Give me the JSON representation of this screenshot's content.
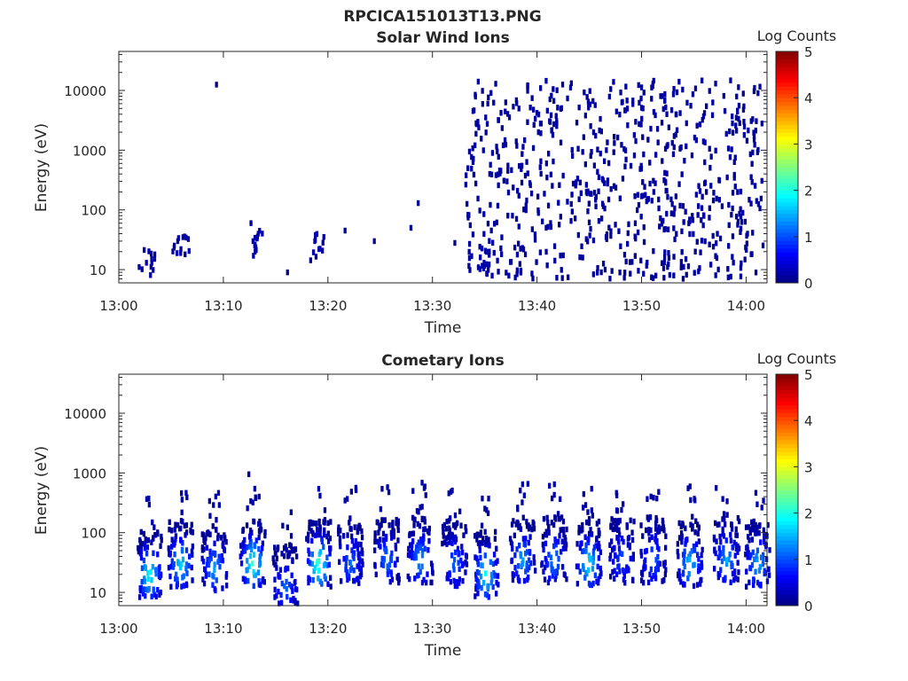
{
  "figure_title": "RPCICA151013T13.PNG",
  "chart_data": [
    {
      "type": "heatmap",
      "title": "Solar Wind Ions",
      "xlabel": "Time",
      "ylabel": "Energy (eV)",
      "x_ticks": [
        "13:00",
        "13:10",
        "13:20",
        "13:30",
        "13:40",
        "13:50",
        "14:00"
      ],
      "x_range_minutes": [
        0,
        62
      ],
      "y_ticks": [
        "10",
        "100",
        "1000",
        "10000"
      ],
      "y_scale": "log",
      "y_range_eV": [
        6,
        45000
      ],
      "colorbar": {
        "label": "Log Counts",
        "ticks": [
          "0",
          "1",
          "2",
          "3",
          "4",
          "5"
        ],
        "range": [
          0,
          5
        ],
        "colormap": "jet"
      },
      "cells": [
        {
          "t": 2.5,
          "e": 13,
          "v": 0.2
        },
        {
          "t": 3.0,
          "e": 15,
          "v": 0.2
        },
        {
          "t": 3.3,
          "e": 18,
          "v": 0.1
        },
        {
          "t": 5.5,
          "e": 30,
          "v": 0.1
        },
        {
          "t": 5.8,
          "e": 22,
          "v": 0.2
        },
        {
          "t": 6.0,
          "e": 35,
          "v": 0.1
        },
        {
          "t": 6.2,
          "e": 18,
          "v": 0.1
        },
        {
          "t": 9.2,
          "e": 12500,
          "v": 0.1
        },
        {
          "t": 12.5,
          "e": 60,
          "v": 0.1
        },
        {
          "t": 12.7,
          "e": 30,
          "v": 0.2
        },
        {
          "t": 12.9,
          "e": 20,
          "v": 0.2
        },
        {
          "t": 13.2,
          "e": 40,
          "v": 0.1
        },
        {
          "t": 16.0,
          "e": 9,
          "v": 0.1
        },
        {
          "t": 18.6,
          "e": 30,
          "v": 0.1
        },
        {
          "t": 19.0,
          "e": 22,
          "v": 0.2
        },
        {
          "t": 21.5,
          "e": 45,
          "v": 0.1
        },
        {
          "t": 24.3,
          "e": 30,
          "v": 0.1
        },
        {
          "t": 27.8,
          "e": 50,
          "v": 0.1
        },
        {
          "t": 28.5,
          "e": 130,
          "v": 0.1
        },
        {
          "t": 32.0,
          "e": 28,
          "v": 0.1
        },
        {
          "t": 34.8,
          "e": 13,
          "v": 0.2
        },
        {
          "t": 35.3,
          "e": 20,
          "v": 0.1
        },
        {
          "t": 37.0,
          "e": 300,
          "v": 0.1
        },
        {
          "t": 40.0,
          "e": 2000,
          "v": 0.1
        },
        {
          "t": 45.0,
          "e": 800,
          "v": 0.1
        },
        {
          "t": 50.0,
          "e": 5000,
          "v": 0.1
        },
        {
          "t": 55.0,
          "e": 20,
          "v": 0.1
        },
        {
          "t": 60.0,
          "e": 40,
          "v": 0.1
        },
        {
          "t": 61.0,
          "e": 9000,
          "v": 0.1
        }
      ]
    },
    {
      "type": "heatmap",
      "title": "Cometary Ions",
      "xlabel": "Time",
      "ylabel": "Energy (eV)",
      "x_ticks": [
        "13:00",
        "13:10",
        "13:20",
        "13:30",
        "13:40",
        "13:50",
        "14:00"
      ],
      "x_range_minutes": [
        0,
        62
      ],
      "y_ticks": [
        "10",
        "100",
        "1000",
        "10000"
      ],
      "y_scale": "log",
      "y_range_eV": [
        6,
        45000
      ],
      "colorbar": {
        "label": "Log Counts",
        "ticks": [
          "0",
          "1",
          "2",
          "3",
          "4",
          "5"
        ],
        "range": [
          0,
          5
        ],
        "colormap": "jet"
      },
      "bursts": [
        {
          "t": 2.8,
          "peak_e": 20,
          "peak_v": 2.0
        },
        {
          "t": 5.8,
          "peak_e": 30,
          "peak_v": 1.8
        },
        {
          "t": 9.0,
          "peak_e": 25,
          "peak_v": 1.5
        },
        {
          "t": 12.7,
          "peak_e": 30,
          "peak_v": 2.2
        },
        {
          "t": 15.8,
          "peak_e": 12,
          "peak_v": 1.2
        },
        {
          "t": 19.0,
          "peak_e": 30,
          "peak_v": 2.3
        },
        {
          "t": 22.0,
          "peak_e": 30,
          "peak_v": 1.2
        },
        {
          "t": 25.5,
          "peak_e": 35,
          "peak_v": 1.3
        },
        {
          "t": 28.7,
          "peak_e": 35,
          "peak_v": 1.5
        },
        {
          "t": 32.0,
          "peak_e": 30,
          "peak_v": 1.2
        },
        {
          "t": 35.0,
          "peak_e": 20,
          "peak_v": 2.0
        },
        {
          "t": 38.5,
          "peak_e": 35,
          "peak_v": 1.5
        },
        {
          "t": 41.5,
          "peak_e": 35,
          "peak_v": 1.4
        },
        {
          "t": 44.8,
          "peak_e": 30,
          "peak_v": 1.9
        },
        {
          "t": 48.0,
          "peak_e": 35,
          "peak_v": 1.1
        },
        {
          "t": 51.0,
          "peak_e": 35,
          "peak_v": 1.2
        },
        {
          "t": 54.5,
          "peak_e": 30,
          "peak_v": 1.7
        },
        {
          "t": 58.0,
          "peak_e": 35,
          "peak_v": 1.5
        },
        {
          "t": 61.0,
          "peak_e": 30,
          "peak_v": 1.6
        }
      ],
      "isolated_cells": [
        {
          "t": 12.3,
          "e": 950,
          "v": 0.1
        },
        {
          "t": 28.0,
          "e": 500,
          "v": 0.1
        },
        {
          "t": 47.5,
          "e": 420,
          "v": 0.1
        },
        {
          "t": 57.0,
          "e": 560,
          "v": 0.1
        }
      ]
    }
  ]
}
